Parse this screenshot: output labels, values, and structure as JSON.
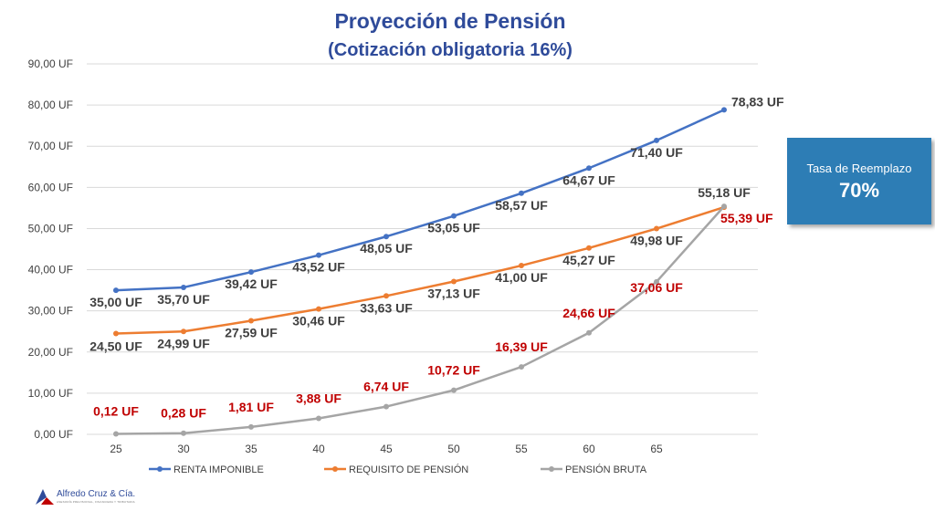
{
  "chart_data": {
    "type": "line",
    "title": "Proyección de Pensión",
    "subtitle": "(Cotización obligatoria 16%)",
    "ylim": [
      0,
      90
    ],
    "y_ticks": [
      "0,00 UF",
      "10,00 UF",
      "20,00 UF",
      "30,00 UF",
      "40,00 UF",
      "50,00 UF",
      "60,00 UF",
      "70,00 UF",
      "80,00 UF",
      "90,00 UF"
    ],
    "y_tick_values": [
      0,
      10,
      20,
      30,
      40,
      50,
      60,
      70,
      80,
      90
    ],
    "categories": [
      "25",
      "30",
      "35",
      "40",
      "45",
      "50",
      "55",
      "60",
      "65",
      ""
    ],
    "grid": true,
    "legend_position": "bottom",
    "series": [
      {
        "name": "RENTA IMPONIBLE",
        "color": "#4472C4",
        "label_color": "#404040",
        "values": [
          35.0,
          35.7,
          39.42,
          43.52,
          48.05,
          53.05,
          58.57,
          64.67,
          71.4,
          78.83
        ],
        "labels": [
          "35,00 UF",
          "35,70 UF",
          "39,42 UF",
          "43,52 UF",
          "48,05 UF",
          "53,05 UF",
          "58,57 UF",
          "64,67 UF",
          "71,40 UF",
          "78,83 UF"
        ]
      },
      {
        "name": "REQUISITO DE PENSIÓN",
        "color": "#ED7D31",
        "label_color": "#404040",
        "values": [
          24.5,
          24.99,
          27.59,
          30.46,
          33.63,
          37.13,
          41.0,
          45.27,
          49.98,
          55.18
        ],
        "labels": [
          "24,50 UF",
          "24,99 UF",
          "27,59 UF",
          "30,46 UF",
          "33,63 UF",
          "37,13 UF",
          "41,00 UF",
          "45,27 UF",
          "49,98 UF",
          "55,18 UF"
        ]
      },
      {
        "name": "PENSIÓN BRUTA",
        "color": "#A5A5A5",
        "label_color": "#C00000",
        "values": [
          0.12,
          0.28,
          1.81,
          3.88,
          6.74,
          10.72,
          16.39,
          24.66,
          37.06,
          55.39
        ],
        "labels": [
          "0,12 UF",
          "0,28 UF",
          "1,81 UF",
          "3,88 UF",
          "6,74 UF",
          "10,72 UF",
          "16,39 UF",
          "24,66 UF",
          "37,06 UF",
          "55,39 UF"
        ]
      }
    ]
  },
  "callout": {
    "label": "Tasa de Reemplazo",
    "value": "70%",
    "color": "#2D7DB5"
  },
  "logo": {
    "name": "Alfredo Cruz & Cía.",
    "tagline": "ASESORÍA PREVISIONAL, FINANCIERA Y TRIBUTARIA"
  }
}
